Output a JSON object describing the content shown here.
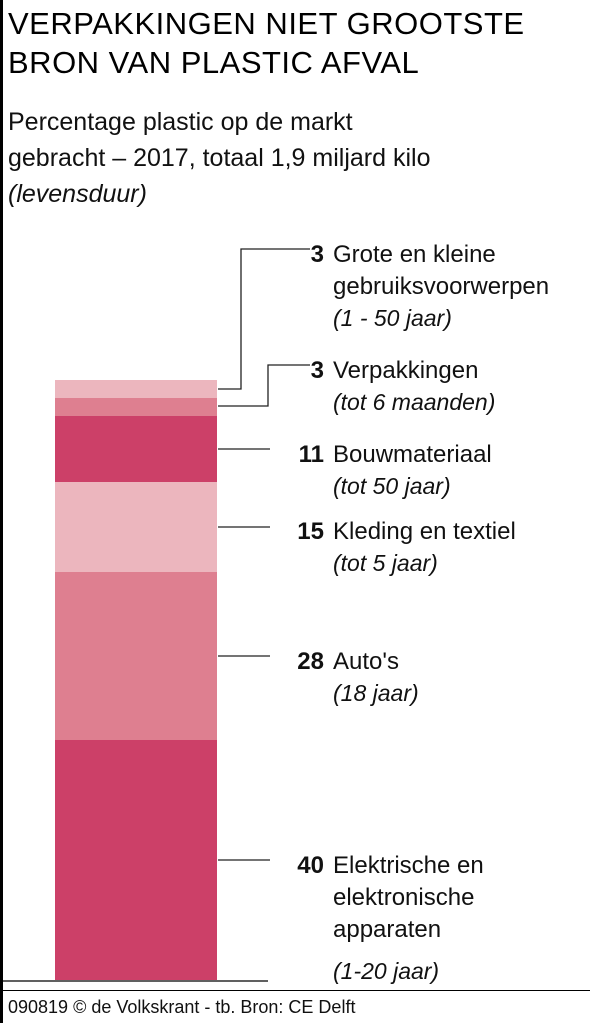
{
  "title_lines": [
    "VERPAKKINGEN NIET GROOTSTE",
    "BRON VAN PLASTIC AFVAL"
  ],
  "subtitle_lines": [
    "Percentage plastic op de markt",
    "gebracht – 2017, totaal 1,9 miljard kilo"
  ],
  "subtitle_note": "(levensduur)",
  "footer": "090819 © de Volkskrant - tb. Bron: CE Delft",
  "chart_data": {
    "type": "bar",
    "stacked": true,
    "unit": "%",
    "total": "1,9 miljard kilo",
    "year": "2017",
    "segments": [
      {
        "value": 40,
        "name_lines": [
          "Elektrische en",
          "elektronische",
          "apparaten"
        ],
        "lifespan": "(1-20 jaar)",
        "color": "#cc4068"
      },
      {
        "value": 28,
        "name_lines": [
          "Auto's"
        ],
        "lifespan": "(18 jaar)",
        "color": "#de7f90"
      },
      {
        "value": 15,
        "name_lines": [
          "Kleding en textiel"
        ],
        "lifespan": "(tot 5 jaar)",
        "color": "#ecb6be"
      },
      {
        "value": 11,
        "name_lines": [
          "Bouwmateriaal"
        ],
        "lifespan": "(tot 50 jaar)",
        "color": "#cc4068"
      },
      {
        "value": 3,
        "name_lines": [
          "Verpakkingen"
        ],
        "lifespan": "(tot 6 maanden)",
        "color": "#de7f90"
      },
      {
        "value": 3,
        "name_lines": [
          "Grote en kleine",
          "gebruiksvoorwerpen"
        ],
        "lifespan": "(1 - 50 jaar)",
        "color": "#ecb6be"
      }
    ]
  }
}
